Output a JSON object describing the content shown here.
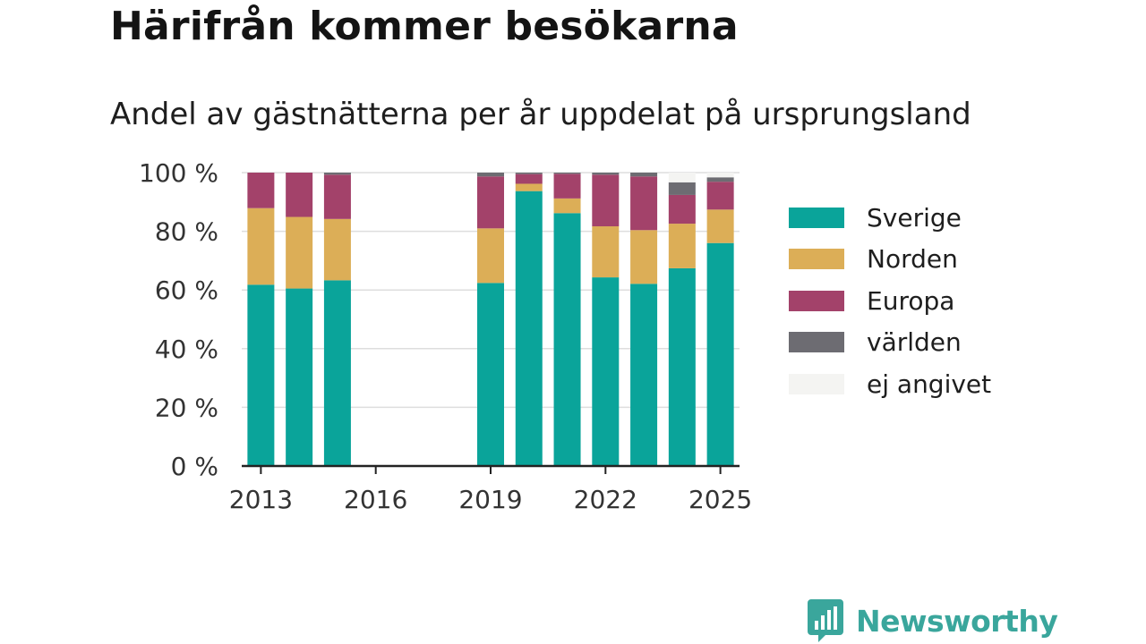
{
  "title": "Härifrån kommer besökarna",
  "subtitle": "Andel av gästnätterna per år uppdelat på ursprungsland",
  "brand": {
    "name": "Newsworthy",
    "icon": "bar-chart-bubble-icon",
    "color": "#3aa69c"
  },
  "chart_data": {
    "type": "bar",
    "stacked": true,
    "categories": [
      2013,
      2014,
      2015,
      2016,
      2017,
      2018,
      2019,
      2020,
      2021,
      2022,
      2023,
      2024,
      2025
    ],
    "x_ticks": [
      "2013",
      "2016",
      "2019",
      "2022",
      "2025"
    ],
    "y_ticks": [
      "0 %",
      "20 %",
      "40 %",
      "60 %",
      "80 %",
      "100 %"
    ],
    "ylim": [
      0,
      100
    ],
    "grid": true,
    "legend_position": "right",
    "series": [
      {
        "name": "Sverige",
        "color": "#0aa49a",
        "values": [
          61.8,
          60.5,
          63.3,
          null,
          null,
          null,
          62.4,
          93.7,
          86.2,
          64.3,
          62.1,
          67.4,
          76.0
        ]
      },
      {
        "name": "Norden",
        "color": "#dcae57",
        "values": [
          26.1,
          24.4,
          20.9,
          null,
          null,
          null,
          18.6,
          2.5,
          5.0,
          17.4,
          18.3,
          15.2,
          11.4
        ]
      },
      {
        "name": "Europa",
        "color": "#a3426a",
        "values": [
          12.1,
          15.1,
          15.1,
          null,
          null,
          null,
          17.7,
          3.3,
          8.4,
          17.6,
          18.3,
          9.8,
          9.5
        ]
      },
      {
        "name": "världen",
        "color": "#6d6c72",
        "values": [
          0.0,
          0.0,
          0.7,
          null,
          null,
          null,
          1.3,
          0.5,
          0.4,
          0.7,
          1.3,
          4.3,
          1.5
        ]
      },
      {
        "name": "ej angivet",
        "color": "#f4f4f2",
        "values": [
          0.0,
          0.0,
          0.0,
          null,
          null,
          null,
          0.0,
          0.0,
          0.0,
          0.0,
          0.0,
          3.3,
          1.6
        ]
      }
    ]
  }
}
